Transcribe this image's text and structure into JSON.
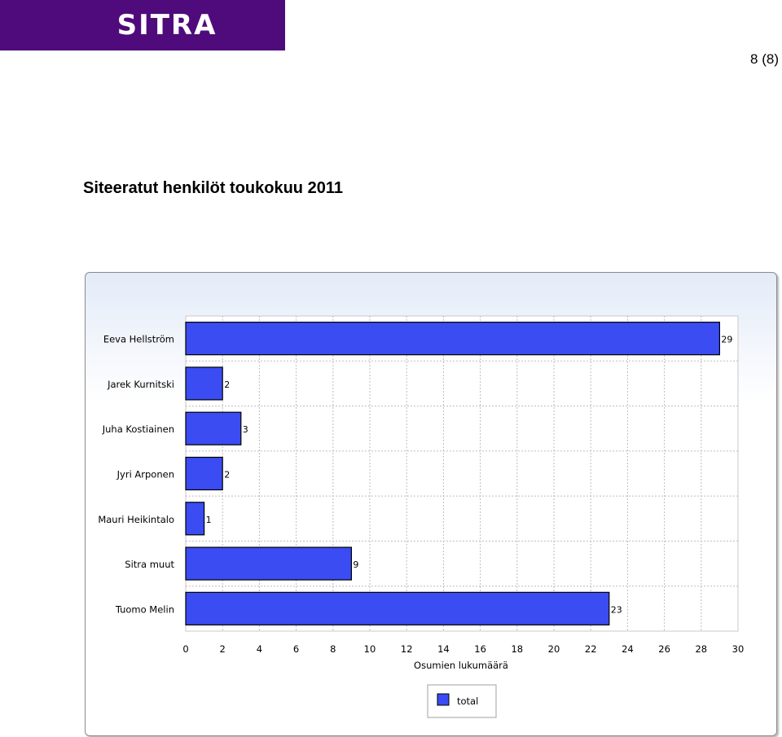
{
  "header": {
    "logo_text": "SITRA",
    "page_number": "8 (8)",
    "brand_color": "#4f0b7b"
  },
  "document": {
    "title": "Siteeratut henkilöt toukokuu 2011"
  },
  "chart_data": {
    "type": "bar",
    "orientation": "horizontal",
    "categories": [
      "Eeva Hellström",
      "Jarek Kurnitski",
      "Juha Kostiainen",
      "Jyri Arponen",
      "Mauri Heikintalo",
      "Sitra muut",
      "Tuomo Melin"
    ],
    "series": [
      {
        "name": "total",
        "values": [
          29,
          2,
          3,
          2,
          1,
          9,
          23
        ],
        "color": "#3a4cf2"
      }
    ],
    "xlabel": "Osumien lukumäärä",
    "xlim": [
      0,
      30
    ],
    "xticks": [
      0,
      2,
      4,
      6,
      8,
      10,
      12,
      14,
      16,
      18,
      20,
      22,
      24,
      26,
      28,
      30
    ],
    "grid": true,
    "legend_position": "bottom-center",
    "data_labels": true
  }
}
